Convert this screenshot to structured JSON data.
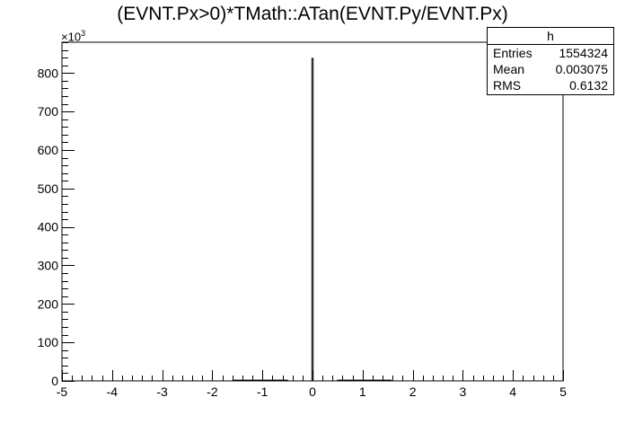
{
  "chart_data": {
    "type": "bar",
    "title": "(EVNT.Px>0)*TMath::ATan(EVNT.Py/EVNT.Px)",
    "xlabel": "",
    "ylabel": "",
    "xlim": [
      -5,
      5
    ],
    "ylim": [
      0,
      880000
    ],
    "y_multiplier_label": "×10",
    "y_multiplier_exp": "3",
    "x_ticks": [
      "-5",
      "-4",
      "-3",
      "-2",
      "-1",
      "0",
      "1",
      "2",
      "3",
      "4",
      "5"
    ],
    "y_ticks": [
      "0",
      "100",
      "200",
      "300",
      "400",
      "500",
      "600",
      "700",
      "800"
    ],
    "bins": [
      {
        "x_low": -1.5708,
        "x_high": -0.5,
        "value": 2000
      },
      {
        "x_low": -0.0125,
        "x_high": 0.0125,
        "value": 838000
      },
      {
        "x_low": 0.5,
        "x_high": 1.5708,
        "value": 2000
      }
    ],
    "grid": false,
    "legend": "none"
  },
  "stats": {
    "name": "h",
    "entries_label": "Entries",
    "entries": "1554324",
    "mean_label": "Mean",
    "mean": "0.003075",
    "rms_label": "RMS",
    "rms": "0.6132"
  }
}
